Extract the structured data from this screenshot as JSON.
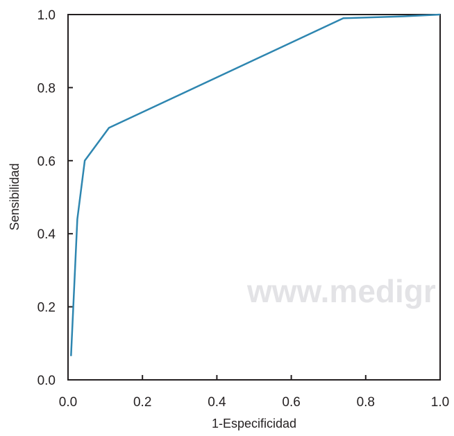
{
  "chart_data": {
    "type": "line",
    "xlabel": "1-Especificidad",
    "ylabel": "Sensibilidad",
    "xlim": [
      0,
      1
    ],
    "ylim": [
      0,
      1
    ],
    "x_ticks": [
      "0.0",
      "0.2",
      "0.4",
      "0.6",
      "0.8",
      "1.0"
    ],
    "y_ticks": [
      "0.0",
      "0.2",
      "0.4",
      "0.6",
      "0.8",
      "1.0"
    ],
    "grid": false,
    "series": [
      {
        "color": "#2e86b0",
        "x": [
          0.008,
          0.025,
          0.045,
          0.11,
          0.74,
          0.9,
          1.0
        ],
        "y": [
          0.065,
          0.44,
          0.6,
          0.69,
          0.99,
          0.995,
          1.0
        ]
      }
    ]
  },
  "watermark": "www.medigr"
}
